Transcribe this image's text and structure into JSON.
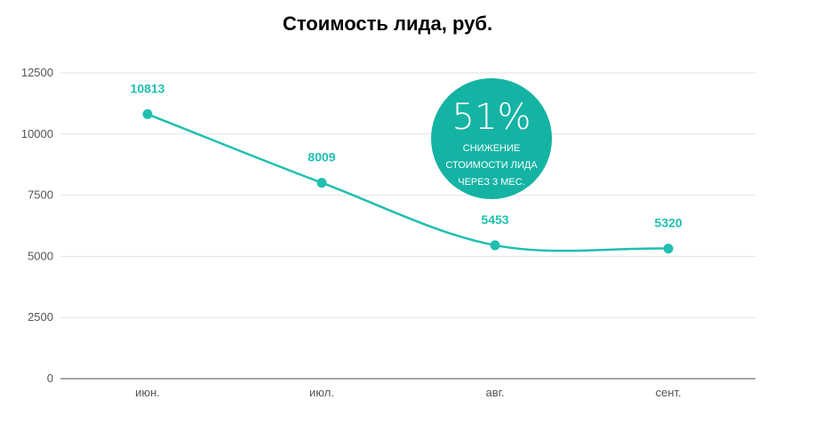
{
  "chart_data": {
    "type": "line",
    "title": "Стоимость лида, руб.",
    "categories": [
      "июн.",
      "июл.",
      "авг.",
      "сент."
    ],
    "series": [
      {
        "values": [
          10813,
          8009,
          5453,
          5320
        ]
      }
    ],
    "data_labels": [
      "10813",
      "8009",
      "5453",
      "5320"
    ],
    "y_ticks": [
      0,
      2500,
      5000,
      7500,
      10000,
      12500
    ],
    "y_tick_labels": [
      "0",
      "2500",
      "5000",
      "7500",
      "10000",
      "12500"
    ],
    "ylim": [
      0,
      12500
    ],
    "grid": true,
    "xlabel": "",
    "ylabel": "",
    "line_color": "#1fbfb0",
    "grid_color": "#e2e2e2",
    "axis_color": "#888888",
    "annotation": {
      "value": "51%",
      "lines": [
        "СНИЖЕНИЕ",
        "СТОИМОСТИ ЛИДА",
        "ЧЕРЕЗ 3 МЕС."
      ],
      "color": "#14b3a4"
    }
  }
}
